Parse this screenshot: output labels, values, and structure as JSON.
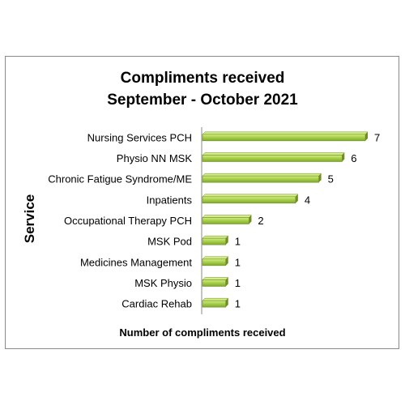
{
  "chart_data": {
    "type": "bar",
    "orientation": "horizontal",
    "title_lines": [
      "Compliments received",
      "September - October 2021"
    ],
    "xlabel": "Number of compliments received",
    "ylabel": "Service",
    "categories": [
      "Nursing Services PCH",
      "Physio NN MSK",
      "Chronic Fatigue Syndrome/ME",
      "Inpatients",
      "Occupational Therapy PCH",
      "MSK Pod",
      "Medicines Management",
      "MSK Physio",
      "Cardiac Rehab"
    ],
    "values": [
      7,
      6,
      5,
      4,
      2,
      1,
      1,
      1,
      1
    ],
    "xlim": [
      0,
      7
    ],
    "grid": false,
    "legend": "none",
    "colors": {
      "bar_fill": "#9bc43c",
      "bar_highlight": "#d4ec8a",
      "bar_edge": "#6f8f24",
      "axis": "#8a8a8a",
      "text": "#000000"
    }
  }
}
